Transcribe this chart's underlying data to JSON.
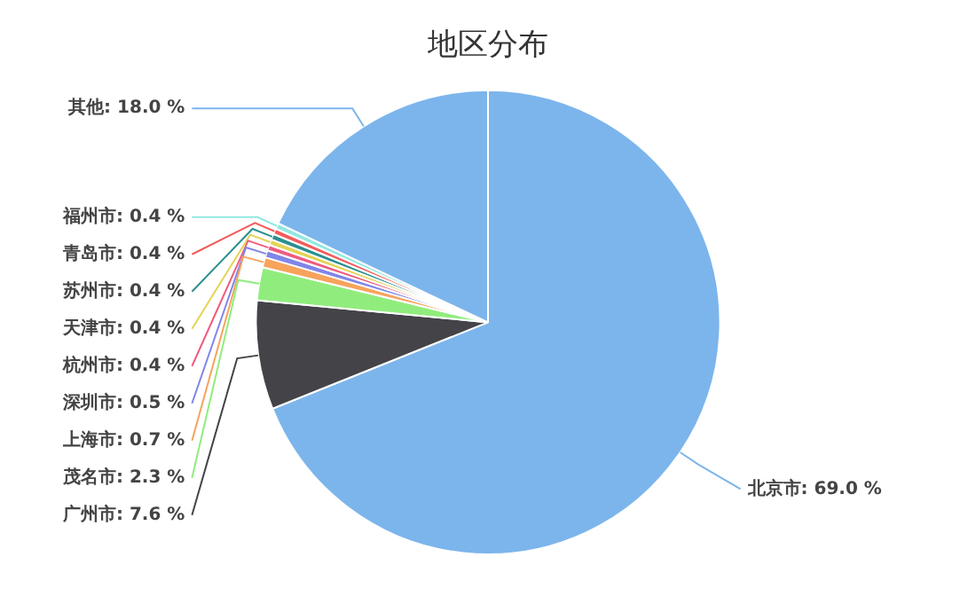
{
  "chart_data": {
    "type": "pie",
    "title": "地区分布",
    "categories": [
      "北京市",
      "广州市",
      "茂名市",
      "上海市",
      "深圳市",
      "杭州市",
      "天津市",
      "苏州市",
      "青岛市",
      "福州市",
      "其他"
    ],
    "values": [
      69.0,
      7.6,
      2.3,
      0.7,
      0.5,
      0.4,
      0.4,
      0.4,
      0.4,
      0.4,
      18.0
    ],
    "value_labels": [
      "69.0 %",
      "7.6 %",
      "2.3 %",
      "0.7 %",
      "0.5 %",
      "0.4 %",
      "0.4 %",
      "0.4 %",
      "0.4 %",
      "0.4 %",
      "18.0 %"
    ],
    "colors": [
      "#7cb5ec",
      "#434348",
      "#90ed7d",
      "#f7a35c",
      "#8085e9",
      "#f15c80",
      "#e4d354",
      "#2b908f",
      "#f45b5b",
      "#91e8e1",
      "#7cb5ec"
    ],
    "legend": false
  }
}
